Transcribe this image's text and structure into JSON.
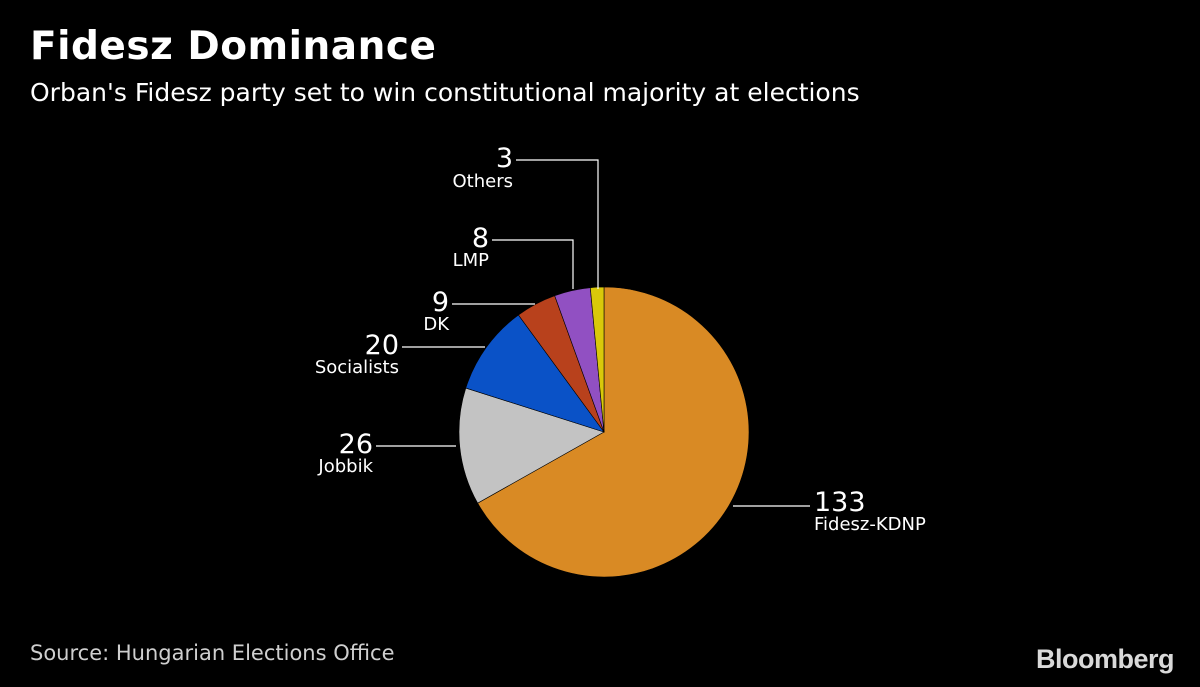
{
  "title": "Fidesz Dominance",
  "subtitle": "Orban's Fidesz party set to win constitutional majority at elections",
  "source": "Source: Hungarian Elections Office",
  "logo": "Bloomberg",
  "chart_data": {
    "type": "pie",
    "title": "Fidesz Dominance",
    "subtitle": "Orban's Fidesz party set to win constitutional majority at elections",
    "start_angle_deg": 0,
    "direction": "clockwise",
    "slices": [
      {
        "label": "Fidesz-KDNP",
        "value": 133,
        "color": "#d98a24"
      },
      {
        "label": "Jobbik",
        "value": 26,
        "color": "#c3c3c3"
      },
      {
        "label": "Socialists",
        "value": 20,
        "color": "#0a52c7"
      },
      {
        "label": "DK",
        "value": 9,
        "color": "#b8411c"
      },
      {
        "label": "LMP",
        "value": 8,
        "color": "#9150c2"
      },
      {
        "label": "Others",
        "value": 3,
        "color": "#d9c80a"
      }
    ]
  }
}
